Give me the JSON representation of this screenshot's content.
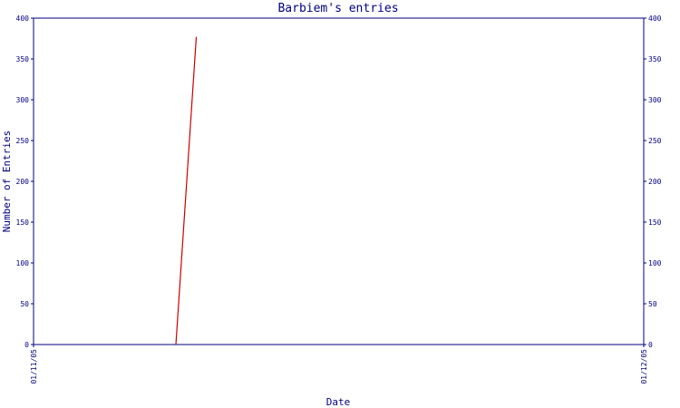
{
  "chart_data": {
    "type": "line",
    "title": "Barbiem's entries",
    "xlabel": "Date",
    "ylabel": "Number of Entries",
    "x_ticks": [
      "01/11/05",
      "01/12/05"
    ],
    "xlim": [
      "2005-11-01",
      "2005-12-01"
    ],
    "ylim": [
      0,
      400
    ],
    "y_ticks": [
      0,
      50,
      100,
      150,
      200,
      250,
      300,
      350,
      400
    ],
    "grid": false,
    "series": [
      {
        "x": [
          "2005-11-08",
          "2005-11-09"
        ],
        "y": [
          0,
          377
        ]
      }
    ],
    "colors": {
      "axis": "#000080",
      "line": "#cc0000",
      "background": "#ffffff"
    }
  }
}
